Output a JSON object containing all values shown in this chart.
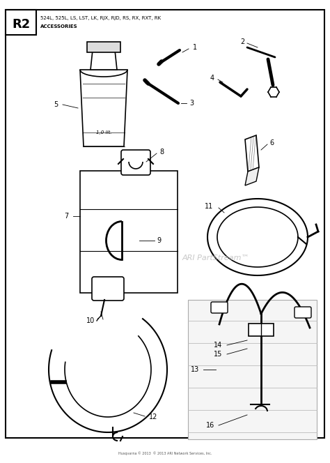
{
  "title_box": "R2",
  "subtitle_line1": "524L, 525L, LS, LST, LK, RJX, RJD, RS, RX, RXT, RK",
  "subtitle_line2": "ACCESSORIES",
  "watermark": "ARI PartStream™",
  "copyright_line2": "Husqvarna © 2013  © 2013 ARI Network Services, Inc.",
  "bg_color": "#ffffff",
  "border_color": "#000000"
}
